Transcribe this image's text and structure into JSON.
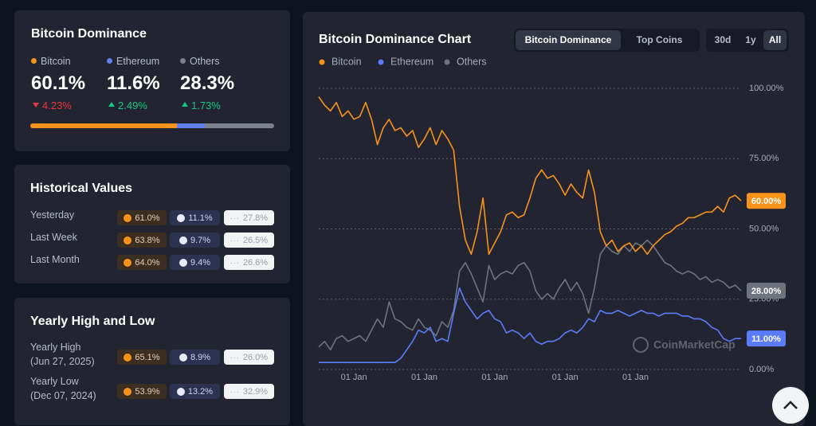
{
  "summary": {
    "title": "Bitcoin Dominance",
    "items": [
      {
        "name": "Bitcoin",
        "color": "#f7931a",
        "value": 60.1,
        "value_label": "60.1%",
        "change": "4.23%",
        "direction": "down"
      },
      {
        "name": "Ethereum",
        "color": "#627eea",
        "value": 11.6,
        "value_label": "11.6%",
        "change": "2.49%",
        "direction": "up"
      },
      {
        "name": "Others",
        "color": "#7d818c",
        "value": 28.3,
        "value_label": "28.3%",
        "change": "1.73%",
        "direction": "up"
      }
    ]
  },
  "historical": {
    "title": "Historical Values",
    "rows": [
      {
        "label": "Yesterday",
        "bitcoin": "61.0%",
        "ethereum": "11.1%",
        "others": "27.8%"
      },
      {
        "label": "Last Week",
        "bitcoin": "63.8%",
        "ethereum": "9.7%",
        "others": "26.5%"
      },
      {
        "label": "Last Month",
        "bitcoin": "64.0%",
        "ethereum": "9.4%",
        "others": "26.6%"
      }
    ]
  },
  "yearly": {
    "title": "Yearly High and Low",
    "rows": [
      {
        "label": "Yearly High",
        "date": "(Jun 27, 2025)",
        "bitcoin": "65.1%",
        "ethereum": "8.9%",
        "others": "26.0%"
      },
      {
        "label": "Yearly Low",
        "date": "(Dec 07, 2024)",
        "bitcoin": "53.9%",
        "ethereum": "13.2%",
        "others": "32.9%"
      }
    ]
  },
  "chart_tabs": [
    "Bitcoin Dominance",
    "Top Coins"
  ],
  "active_tab": 0,
  "range_tabs": [
    "30d",
    "1y",
    "All"
  ],
  "active_range": 2,
  "chart_data": {
    "type": "line",
    "title": "Bitcoin Dominance Chart",
    "watermark": "CoinMarketCap",
    "categories": [
      null,
      null,
      null,
      null,
      null,
      null,
      "01 Jan",
      null,
      null,
      null,
      null,
      null,
      null,
      null,
      null,
      null,
      null,
      null,
      "01 Jan",
      null,
      null,
      null,
      null,
      null,
      null,
      null,
      null,
      null,
      null,
      null,
      "01 Jan",
      null,
      null,
      null,
      null,
      null,
      null,
      null,
      null,
      null,
      null,
      null,
      "01 Jan",
      null,
      null,
      null,
      null,
      null,
      null,
      null,
      null,
      null,
      null,
      null,
      "01 Jan",
      null,
      null,
      null,
      null,
      null,
      null,
      null,
      null,
      null,
      null,
      null,
      null,
      null,
      null,
      null,
      null,
      null,
      null
    ],
    "ylim": [
      0,
      100
    ],
    "yticks": [
      {
        "value": 0,
        "label": "0.00%"
      },
      {
        "value": 25,
        "label": "25.00%"
      },
      {
        "value": 50,
        "label": "50.00%"
      },
      {
        "value": 75,
        "label": "75.00%"
      },
      {
        "value": 100,
        "label": "100.00%"
      }
    ],
    "grid": true,
    "series": [
      {
        "name": "Others",
        "color": "#6f737c",
        "end_label": "28.00%",
        "values": [
          8,
          10,
          7,
          11,
          12,
          10,
          11,
          12,
          10,
          14,
          18,
          15,
          24,
          18,
          17,
          15,
          14,
          18,
          15,
          14,
          12,
          17,
          15,
          21,
          35,
          38,
          34,
          29,
          24,
          37,
          32,
          34,
          35,
          34,
          37,
          38,
          35,
          28,
          25,
          27,
          25,
          29,
          32,
          28,
          31,
          27,
          20,
          29,
          41,
          44,
          42,
          41,
          44,
          42,
          45,
          44,
          46,
          44,
          41,
          38,
          37,
          35,
          34,
          35,
          34,
          32,
          33,
          31,
          32,
          31,
          29,
          30,
          28
        ]
      },
      {
        "name": "Ethereum",
        "color": "#5b7cfa",
        "end_label": "11.00%",
        "values": [
          2.5,
          2.5,
          2.5,
          2.5,
          2.5,
          2.5,
          2.5,
          2.5,
          2.5,
          2.5,
          2.5,
          2.5,
          2.5,
          2.5,
          4,
          7,
          10,
          14,
          13,
          15,
          10,
          11,
          10,
          20,
          29,
          24,
          21,
          18,
          20,
          21,
          18,
          17,
          13,
          14,
          13,
          11,
          13,
          10,
          9,
          10,
          10,
          11,
          13,
          14,
          13,
          15,
          18,
          17,
          21,
          20,
          20,
          21,
          20,
          19,
          20,
          21,
          20,
          20,
          19,
          20,
          20,
          20,
          19,
          19,
          18,
          18,
          17,
          15,
          14,
          11,
          10,
          11,
          11
        ]
      },
      {
        "name": "Bitcoin",
        "color": "#f7931a",
        "end_label": "60.00%",
        "values": [
          97,
          94,
          92,
          95,
          90,
          92,
          89,
          90,
          95,
          89,
          80,
          86,
          89,
          85,
          86,
          83,
          85,
          79,
          82,
          86,
          80,
          85,
          82,
          78,
          58,
          46,
          41,
          49,
          61,
          41,
          45,
          49,
          55,
          56,
          54,
          55,
          61,
          68,
          71,
          68,
          69,
          66,
          62,
          66,
          63,
          61,
          71,
          63,
          49,
          44,
          46,
          42,
          44,
          45,
          42,
          44,
          41,
          44,
          46,
          48,
          49,
          51,
          52,
          54,
          54,
          55,
          56,
          56,
          58,
          56,
          61,
          62,
          60
        ]
      }
    ]
  }
}
